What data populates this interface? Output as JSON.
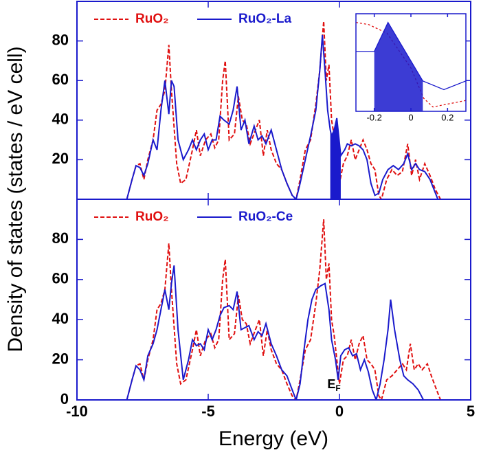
{
  "chart_data": [
    {
      "type": "line",
      "ylabel": "Density of states (states / eV cell)",
      "xlim": [
        -10,
        5
      ],
      "ylim": [
        0,
        100
      ],
      "xticks": [
        -10,
        -5,
        0,
        5
      ],
      "yticks": [
        20,
        40,
        60,
        80
      ],
      "legend": "top-left",
      "series": [
        {
          "name": "RuO₂",
          "color": "#e01010",
          "style": "dashed",
          "x": [
            -8.1,
            -7.9,
            -7.75,
            -7.6,
            -7.45,
            -7.3,
            -7.1,
            -6.95,
            -6.8,
            -6.65,
            -6.5,
            -6.4,
            -6.2,
            -6.05,
            -5.85,
            -5.6,
            -5.45,
            -5.3,
            -5.1,
            -4.9,
            -4.75,
            -4.6,
            -4.45,
            -4.35,
            -4.2,
            -4.0,
            -3.85,
            -3.7,
            -3.55,
            -3.4,
            -3.2,
            -3.05,
            -2.9,
            -2.75,
            -2.6,
            -2.4,
            -2.2,
            -2.0,
            -1.8,
            -1.65,
            -1.5,
            -1.3,
            -1.1,
            -0.9,
            -0.75,
            -0.6,
            -0.5,
            -0.4,
            -0.3,
            -0.2,
            -0.1,
            0.0,
            0.15,
            0.3,
            0.45,
            0.6,
            0.75,
            0.9,
            1.05,
            1.2,
            1.35,
            1.5,
            1.6,
            1.8,
            2.0,
            2.2,
            2.4,
            2.6,
            2.75,
            2.9,
            3.05,
            3.25,
            3.45,
            3.65,
            3.85
          ],
          "values": [
            0,
            10,
            17,
            18,
            10,
            20,
            30,
            45,
            48,
            55,
            78,
            55,
            18,
            8,
            10,
            25,
            35,
            22,
            30,
            33,
            26,
            30,
            60,
            70,
            30,
            33,
            52,
            40,
            38,
            28,
            35,
            40,
            22,
            35,
            25,
            18,
            15,
            8,
            2,
            0,
            10,
            25,
            30,
            48,
            65,
            90,
            60,
            68,
            40,
            32,
            20,
            8,
            18,
            22,
            30,
            20,
            25,
            30,
            25,
            18,
            15,
            2,
            0,
            10,
            15,
            12,
            14,
            28,
            12,
            20,
            10,
            18,
            12,
            5,
            0
          ]
        },
        {
          "name": "RuO₂-La",
          "color": "#1a1acc",
          "style": "solid",
          "fill_between": [
            -0.35,
            0.05
          ],
          "x": [
            -8.1,
            -7.9,
            -7.75,
            -7.6,
            -7.45,
            -7.3,
            -7.1,
            -6.95,
            -6.8,
            -6.65,
            -6.5,
            -6.4,
            -6.3,
            -6.15,
            -5.95,
            -5.75,
            -5.6,
            -5.45,
            -5.3,
            -5.15,
            -5.0,
            -4.85,
            -4.7,
            -4.55,
            -4.4,
            -4.2,
            -4.05,
            -3.9,
            -3.75,
            -3.6,
            -3.45,
            -3.25,
            -3.1,
            -2.95,
            -2.8,
            -2.6,
            -2.4,
            -2.2,
            -2.0,
            -1.8,
            -1.65,
            -1.5,
            -1.3,
            -1.1,
            -0.9,
            -0.75,
            -0.65,
            -0.55,
            -0.45,
            -0.35,
            -0.3,
            -0.2,
            -0.1,
            0.05,
            0.2,
            0.3,
            0.45,
            0.6,
            0.75,
            0.9,
            1.05,
            1.2,
            1.35,
            1.5,
            1.65,
            1.85,
            2.05,
            2.25,
            2.45,
            2.6,
            2.75,
            2.9,
            3.05,
            3.25,
            3.45,
            3.6,
            3.75
          ],
          "values": [
            0,
            10,
            17,
            16,
            12,
            18,
            30,
            25,
            45,
            60,
            43,
            60,
            57,
            30,
            20,
            25,
            30,
            25,
            30,
            33,
            25,
            30,
            30,
            42,
            40,
            38,
            45,
            57,
            35,
            40,
            28,
            37,
            30,
            32,
            28,
            35,
            25,
            15,
            8,
            2,
            0,
            8,
            20,
            32,
            45,
            65,
            83,
            65,
            45,
            35,
            32,
            35,
            41,
            22,
            25,
            28,
            27,
            28,
            27,
            25,
            20,
            8,
            2,
            3,
            10,
            15,
            17,
            15,
            18,
            23,
            15,
            18,
            15,
            14,
            10,
            5,
            0
          ]
        }
      ]
    },
    {
      "type": "line",
      "xlabel": "Energy (eV)",
      "annotation": {
        "text": "E",
        "subscript": "F"
      },
      "xlim": [
        -10,
        5
      ],
      "ylim": [
        0,
        100
      ],
      "xticks": [
        -10,
        -5,
        0,
        5
      ],
      "yticks": [
        0,
        20,
        40,
        60,
        80
      ],
      "legend": "top-left",
      "series": [
        {
          "name": "RuO₂",
          "color": "#e01010",
          "style": "dashed",
          "x": [
            -8.1,
            -7.9,
            -7.75,
            -7.6,
            -7.45,
            -7.3,
            -7.1,
            -6.95,
            -6.8,
            -6.65,
            -6.5,
            -6.4,
            -6.2,
            -6.05,
            -5.85,
            -5.6,
            -5.45,
            -5.3,
            -5.1,
            -4.9,
            -4.75,
            -4.6,
            -4.45,
            -4.35,
            -4.2,
            -4.0,
            -3.85,
            -3.7,
            -3.55,
            -3.4,
            -3.2,
            -3.05,
            -2.9,
            -2.75,
            -2.6,
            -2.4,
            -2.2,
            -2.0,
            -1.8,
            -1.65,
            -1.5,
            -1.3,
            -1.1,
            -0.9,
            -0.75,
            -0.6,
            -0.5,
            -0.4,
            -0.3,
            -0.2,
            -0.1,
            0.0,
            0.15,
            0.3,
            0.45,
            0.6,
            0.75,
            0.9,
            1.05,
            1.2,
            1.35,
            1.5,
            1.6,
            1.8,
            2.0,
            2.2,
            2.4,
            2.55,
            2.7,
            2.85,
            3.0,
            3.15,
            3.35,
            3.5,
            3.7,
            3.85
          ],
          "values": [
            0,
            10,
            17,
            18,
            10,
            20,
            30,
            45,
            48,
            55,
            78,
            55,
            18,
            8,
            10,
            25,
            35,
            22,
            30,
            33,
            26,
            30,
            60,
            70,
            30,
            33,
            52,
            40,
            38,
            28,
            35,
            40,
            22,
            35,
            25,
            18,
            15,
            8,
            2,
            0,
            10,
            25,
            30,
            48,
            65,
            90,
            60,
            68,
            40,
            32,
            20,
            8,
            20,
            22,
            30,
            20,
            28,
            32,
            20,
            18,
            15,
            2,
            0,
            10,
            12,
            15,
            18,
            15,
            28,
            15,
            18,
            15,
            18,
            12,
            5,
            0
          ]
        },
        {
          "name": "RuO₂-Ce",
          "color": "#1a1acc",
          "style": "solid",
          "x": [
            -8.1,
            -7.9,
            -7.75,
            -7.6,
            -7.45,
            -7.3,
            -7.1,
            -6.95,
            -6.8,
            -6.65,
            -6.5,
            -6.4,
            -6.3,
            -6.15,
            -5.95,
            -5.75,
            -5.6,
            -5.45,
            -5.3,
            -5.15,
            -5.0,
            -4.85,
            -4.7,
            -4.55,
            -4.4,
            -4.2,
            -4.05,
            -3.9,
            -3.75,
            -3.6,
            -3.45,
            -3.25,
            -3.1,
            -2.95,
            -2.8,
            -2.6,
            -2.4,
            -2.2,
            -2.0,
            -1.8,
            -1.65,
            -1.5,
            -1.35,
            -1.2,
            -1.05,
            -0.9,
            -0.7,
            -0.55,
            -0.4,
            -0.3,
            -0.15,
            -0.05,
            0.05,
            0.2,
            0.35,
            0.5,
            0.65,
            0.8,
            0.95,
            1.1,
            1.25,
            1.4,
            1.55,
            1.7,
            1.85,
            1.95,
            2.1,
            2.3,
            2.45,
            2.6,
            2.8,
            3.0,
            3.2
          ],
          "values": [
            0,
            10,
            17,
            15,
            10,
            22,
            28,
            35,
            45,
            55,
            45,
            58,
            67,
            35,
            10,
            20,
            30,
            27,
            28,
            25,
            35,
            30,
            35,
            42,
            46,
            47,
            45,
            54,
            35,
            36,
            37,
            30,
            34,
            32,
            38,
            28,
            22,
            15,
            12,
            5,
            0,
            8,
            25,
            40,
            50,
            55,
            57,
            58,
            45,
            30,
            20,
            10,
            22,
            25,
            26,
            22,
            23,
            15,
            20,
            14,
            5,
            0,
            8,
            20,
            35,
            50,
            35,
            20,
            12,
            10,
            8,
            5,
            0
          ]
        }
      ]
    },
    {
      "type": "line",
      "xlim": [
        -0.3,
        0.3
      ],
      "ylim": [
        0,
        45
      ],
      "xticks": [
        -0.2,
        0,
        0.2
      ],
      "series": [
        {
          "color": "#e01010",
          "style": "dashed",
          "x": [
            -0.3,
            -0.23,
            -0.13,
            0.0,
            0.07,
            0.12,
            0.18,
            0.3
          ],
          "values": [
            41,
            40,
            36,
            20,
            6,
            2,
            3,
            5
          ]
        },
        {
          "color": "#1a1acc",
          "style": "solid",
          "fill_between": [
            -0.2,
            0.065
          ],
          "x": [
            -0.3,
            -0.2,
            -0.125,
            0.065,
            0.18,
            0.3
          ],
          "values": [
            27.6,
            27.6,
            41,
            14,
            10,
            14
          ]
        }
      ]
    }
  ]
}
